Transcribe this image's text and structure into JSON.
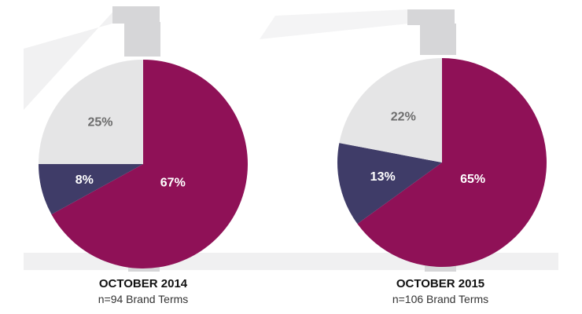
{
  "colors": {
    "primary": "#8f1157",
    "secondary": "#3f3c68",
    "other": "#e5e5e6",
    "label_light": "#ffffff",
    "label_dark": "#6d6d6d",
    "stand": "#d6d6d8",
    "beam": "#f2f2f3",
    "floor": "#f0f0f1"
  },
  "chart_data": [
    {
      "type": "pie",
      "caption_title": "OCTOBER 2014",
      "caption_sub": "n=94 Brand Terms",
      "slices": [
        {
          "label": "67%",
          "value": 67,
          "color": "#8f1157",
          "label_color": "#ffffff"
        },
        {
          "label": "8%",
          "value": 8,
          "color": "#3f3c68",
          "label_color": "#ffffff"
        },
        {
          "label": "25%",
          "value": 25,
          "color": "#e5e5e6",
          "label_color": "#6d6d6d"
        }
      ]
    },
    {
      "type": "pie",
      "caption_title": "OCTOBER 2015",
      "caption_sub": "n=106 Brand Terms",
      "slices": [
        {
          "label": "65%",
          "value": 65,
          "color": "#8f1157",
          "label_color": "#ffffff"
        },
        {
          "label": "13%",
          "value": 13,
          "color": "#3f3c68",
          "label_color": "#ffffff"
        },
        {
          "label": "22%",
          "value": 22,
          "color": "#e5e5e6",
          "label_color": "#6d6d6d"
        }
      ]
    }
  ]
}
